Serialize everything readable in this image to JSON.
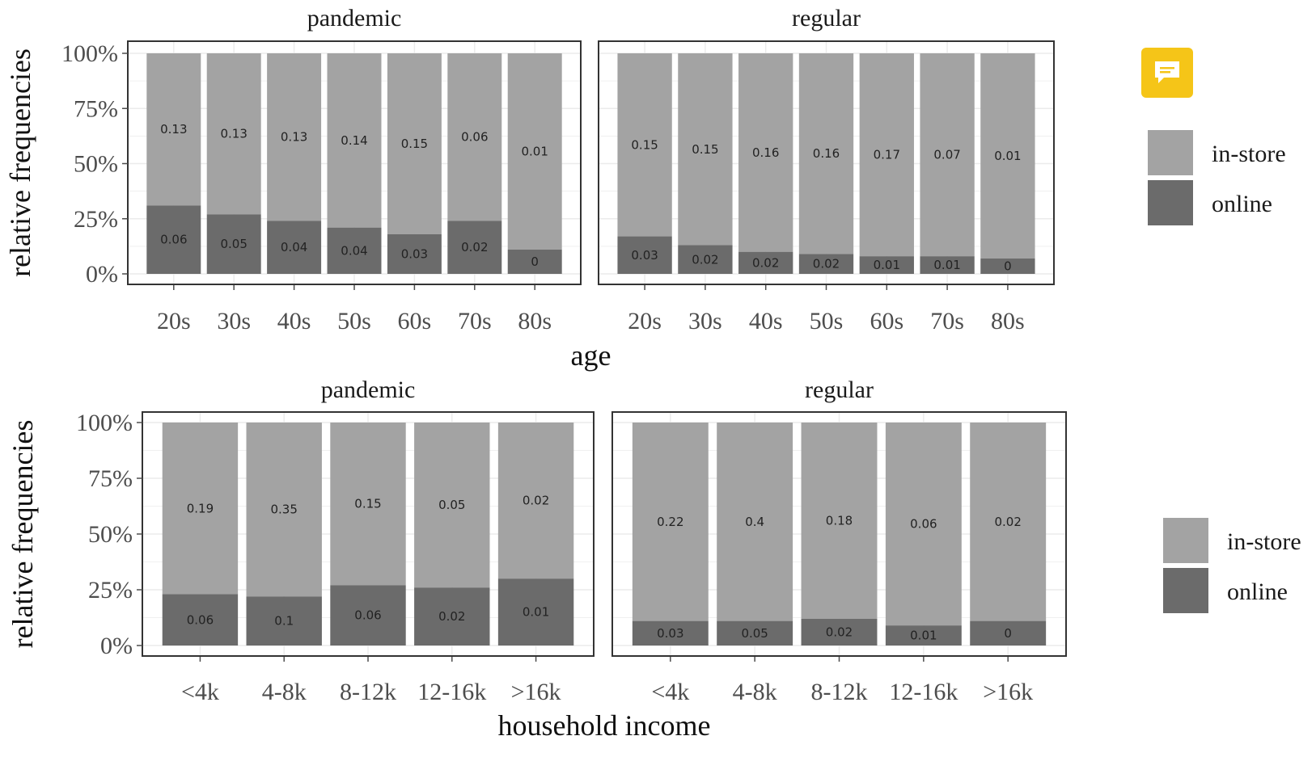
{
  "chart_data": [
    {
      "type": "bar",
      "stacked": true,
      "xlabel": "age",
      "ylabel": "relative frequencies",
      "ylim": [
        0,
        1
      ],
      "yticks": [
        "0%",
        "25%",
        "50%",
        "75%",
        "100%"
      ],
      "grid": true,
      "legend": {
        "position": "right",
        "entries": [
          "in-store",
          "online"
        ]
      },
      "categories": [
        "20s",
        "30s",
        "40s",
        "50s",
        "60s",
        "70s",
        "80s"
      ],
      "panels": [
        {
          "title": "pandemic",
          "online_share": [
            0.31,
            0.27,
            0.24,
            0.21,
            0.18,
            0.24,
            0.11
          ],
          "online_labels": [
            "0.06",
            "0.05",
            "0.04",
            "0.04",
            "0.03",
            "0.02",
            "0"
          ],
          "instore_labels": [
            "0.13",
            "0.13",
            "0.13",
            "0.14",
            "0.15",
            "0.06",
            "0.01"
          ]
        },
        {
          "title": "regular",
          "online_share": [
            0.17,
            0.13,
            0.1,
            0.09,
            0.08,
            0.08,
            0.07
          ],
          "online_labels": [
            "0.03",
            "0.02",
            "0.02",
            "0.02",
            "0.01",
            "0.01",
            "0"
          ],
          "instore_labels": [
            "0.15",
            "0.15",
            "0.16",
            "0.16",
            "0.17",
            "0.07",
            "0.01"
          ]
        }
      ]
    },
    {
      "type": "bar",
      "stacked": true,
      "xlabel": "household income",
      "ylabel": "relative frequencies",
      "ylim": [
        0,
        1
      ],
      "yticks": [
        "0%",
        "25%",
        "50%",
        "75%",
        "100%"
      ],
      "grid": true,
      "legend": {
        "position": "right",
        "entries": [
          "in-store",
          "online"
        ]
      },
      "categories": [
        "<4k",
        "4-8k",
        "8-12k",
        "12-16k",
        ">16k"
      ],
      "panels": [
        {
          "title": "pandemic",
          "online_share": [
            0.23,
            0.22,
            0.27,
            0.26,
            0.3
          ],
          "online_labels": [
            "0.06",
            "0.1",
            "0.06",
            "0.02",
            "0.01"
          ],
          "instore_labels": [
            "0.19",
            "0.35",
            "0.15",
            "0.05",
            "0.02"
          ]
        },
        {
          "title": "regular",
          "online_share": [
            0.11,
            0.11,
            0.12,
            0.09,
            0.11
          ],
          "online_labels": [
            "0.03",
            "0.05",
            "0.02",
            "0.01",
            "0"
          ],
          "instore_labels": [
            "0.22",
            "0.4",
            "0.18",
            "0.06",
            "0.02"
          ]
        }
      ]
    }
  ],
  "colors": {
    "instore": "#a3a3a3",
    "online": "#6b6b6b",
    "panel_border": "#333333",
    "grid": "#ebebeb",
    "text": "#4d4d4d",
    "feedback_bg": "#f5c518"
  },
  "feedback_button": {
    "icon": "comment-icon"
  }
}
